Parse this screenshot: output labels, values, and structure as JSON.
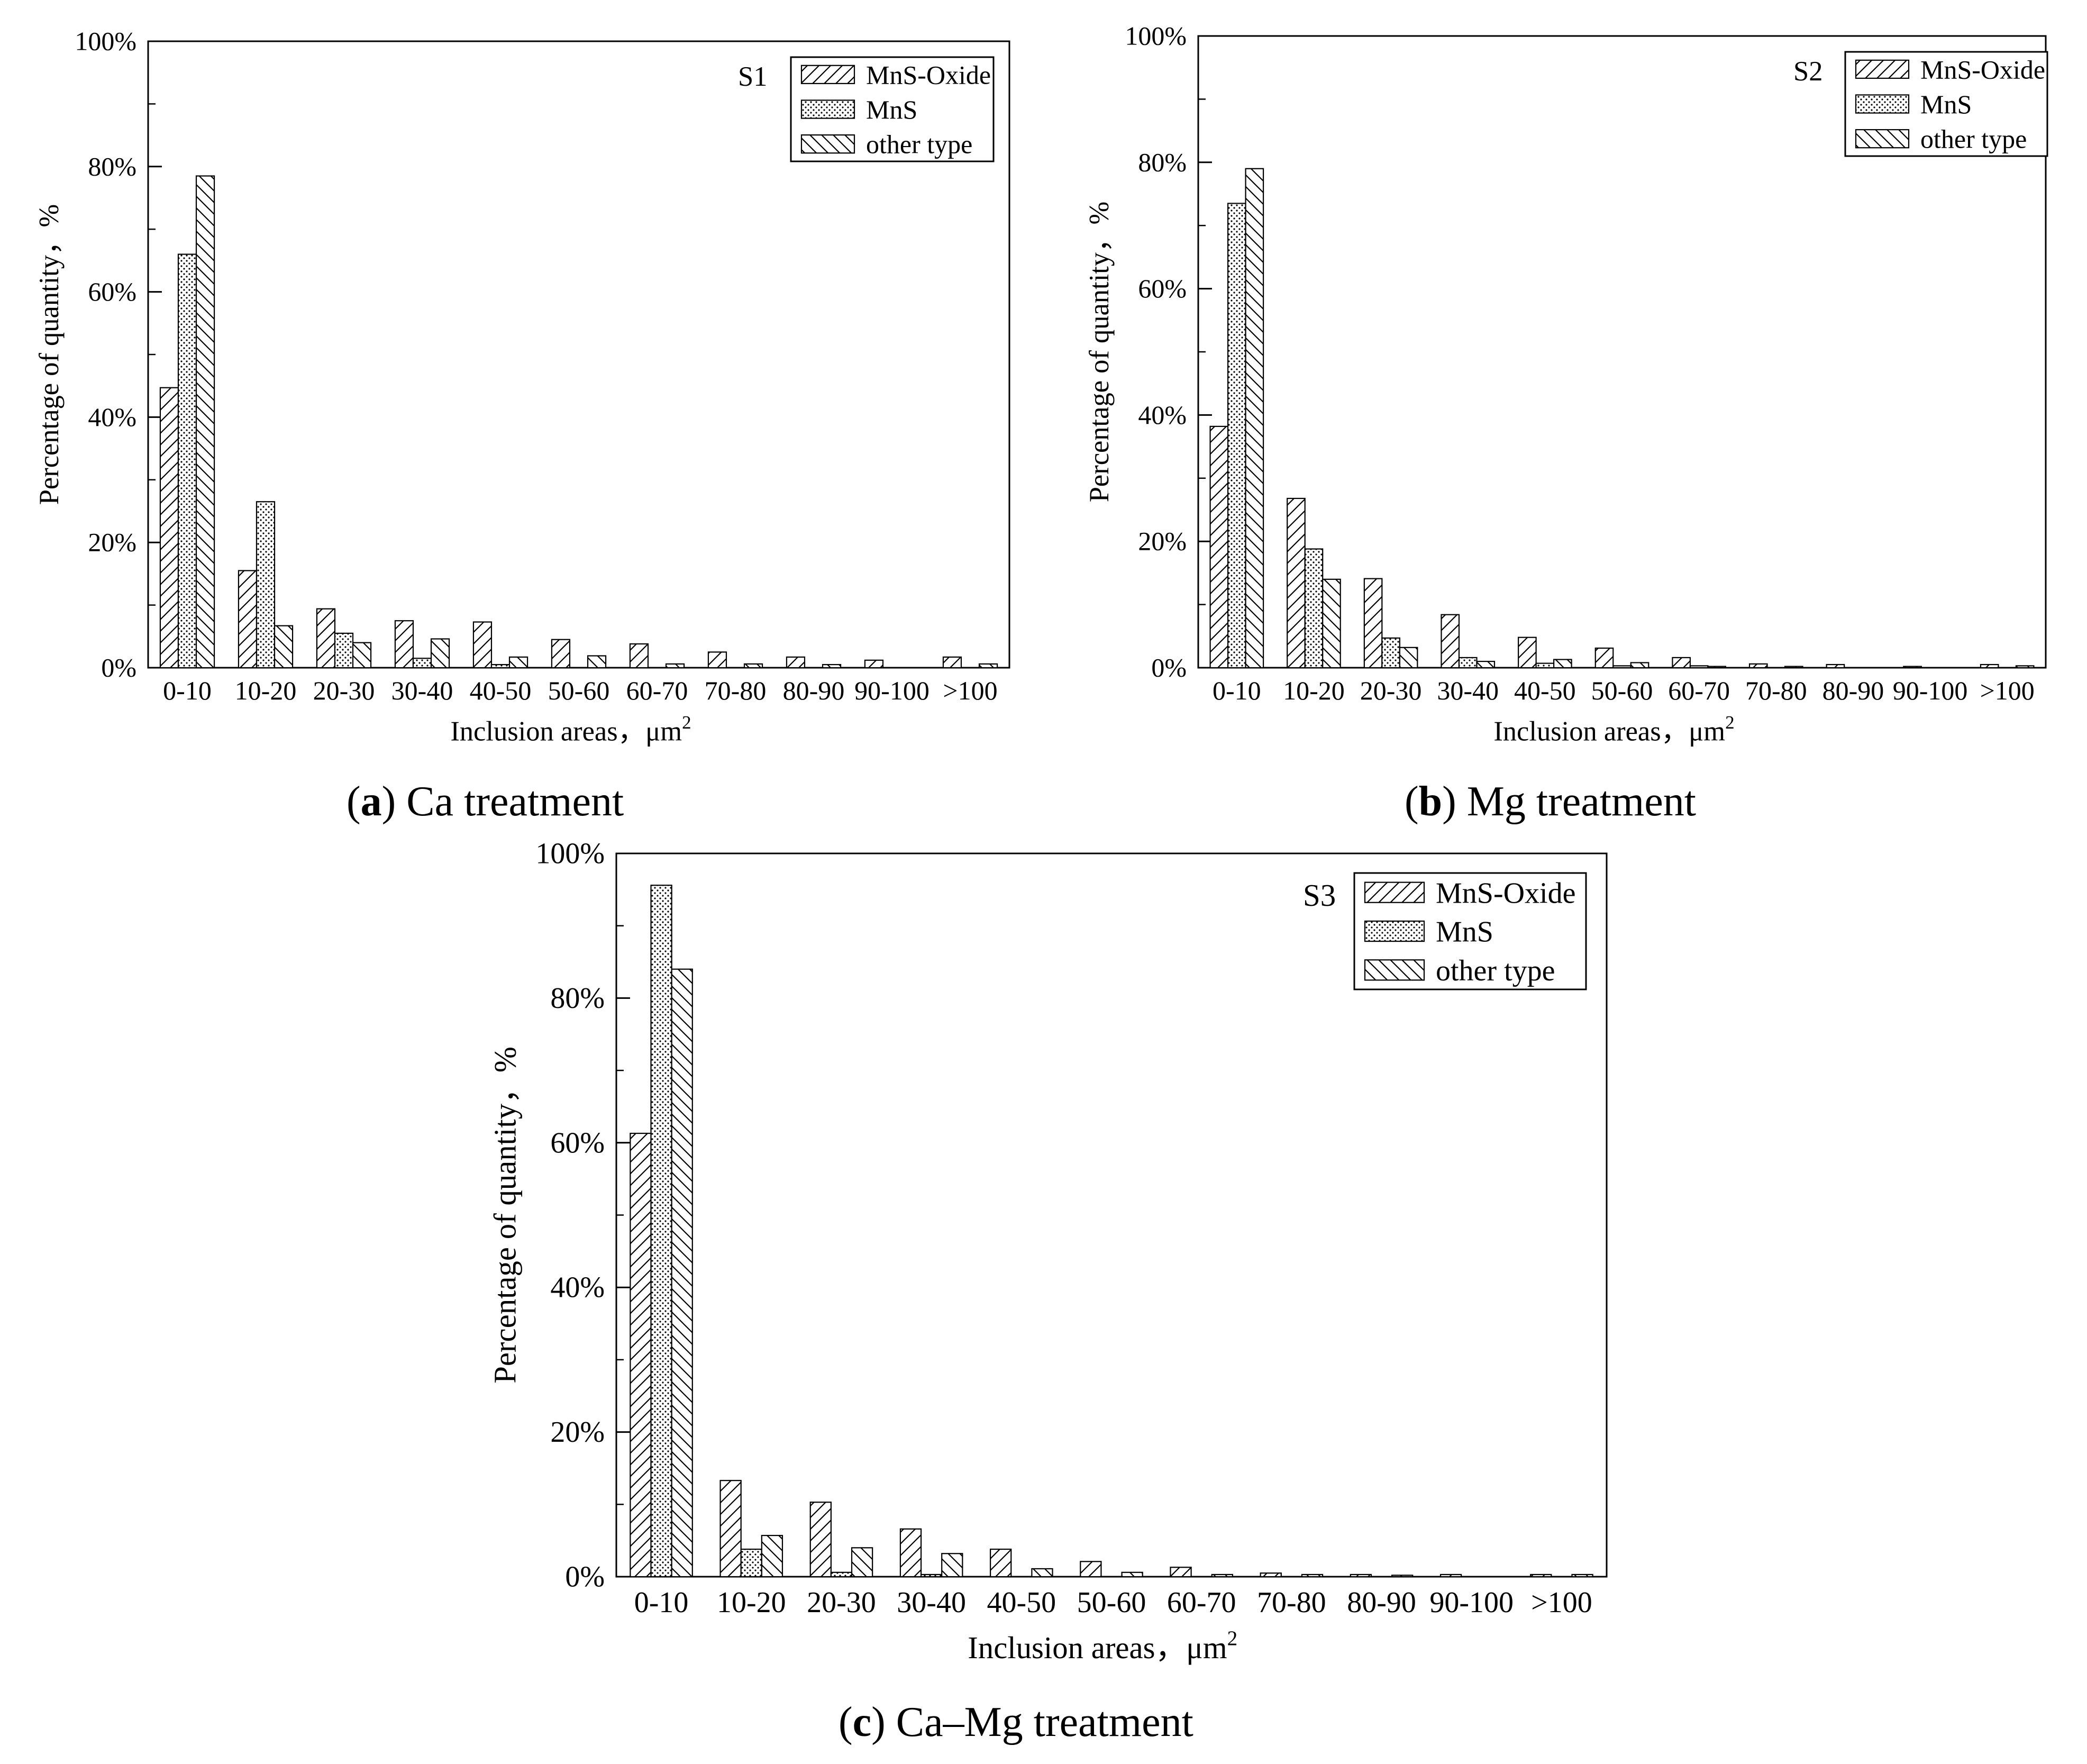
{
  "figure": {
    "colors": {
      "axis": "#000000",
      "bar_fill": "#ffffff",
      "background": "#ffffff"
    },
    "legend_series": [
      "MnS-Oxide",
      "MnS",
      "other type"
    ],
    "pattern_names": [
      "diagonal-forward-hatch",
      "dotted",
      "diagonal-backward-hatch"
    ]
  },
  "captions": [
    {
      "letter": "a",
      "paren_open": "(",
      "paren_close": ")",
      "text": " Ca treatment"
    },
    {
      "letter": "b",
      "paren_open": "(",
      "paren_close": ")",
      "text": " Mg treatment"
    },
    {
      "letter": "c",
      "paren_open": "(",
      "paren_close": ")",
      "text": " Ca–Mg treatment"
    }
  ],
  "chart_data": [
    {
      "type": "bar",
      "sample_label": "S1",
      "caption": "(a) Ca treatment",
      "xlabel": "Inclusion areas，μm",
      "xlabel_sup": "2",
      "ylabel": "Percentage of quantity，%",
      "ylim": [
        0,
        100
      ],
      "yticks": [
        "0%",
        "20%",
        "40%",
        "60%",
        "80%",
        "100%"
      ],
      "categories": [
        "0-10",
        "10-20",
        "20-30",
        "30-40",
        "40-50",
        "50-60",
        "60-70",
        "70-80",
        "80-90",
        "90-100",
        ">100"
      ],
      "series": [
        {
          "name": "MnS-Oxide",
          "values": [
            44.7,
            15.5,
            9.4,
            7.5,
            7.3,
            4.5,
            3.8,
            2.5,
            1.7,
            1.2,
            1.7
          ]
        },
        {
          "name": "MnS",
          "values": [
            66.0,
            26.5,
            5.5,
            1.5,
            0.5,
            0.0,
            0.0,
            0.0,
            0.0,
            0.0,
            0.0
          ]
        },
        {
          "name": "other type",
          "values": [
            78.5,
            6.7,
            4.0,
            4.6,
            1.7,
            1.9,
            0.6,
            0.6,
            0.5,
            0.0,
            0.6
          ]
        }
      ],
      "legend_position": "top-right"
    },
    {
      "type": "bar",
      "sample_label": "S2",
      "caption": "(b) Mg treatment",
      "xlabel": "Inclusion areas，μm",
      "xlabel_sup": "2",
      "ylabel": "Percentage of quantity，%",
      "ylim": [
        0,
        100
      ],
      "yticks": [
        "0%",
        "20%",
        "40%",
        "60%",
        "80%",
        "100%"
      ],
      "categories": [
        "0-10",
        "10-20",
        "20-30",
        "30-40",
        "40-50",
        "50-60",
        "60-70",
        "70-80",
        "80-90",
        "90-100",
        ">100"
      ],
      "series": [
        {
          "name": "MnS-Oxide",
          "values": [
            38.2,
            26.8,
            14.1,
            8.4,
            4.8,
            3.1,
            1.6,
            0.6,
            0.5,
            0.2,
            0.5
          ]
        },
        {
          "name": "MnS",
          "values": [
            73.5,
            18.8,
            4.7,
            1.6,
            0.7,
            0.3,
            0.3,
            0.0,
            0.0,
            0.0,
            0.0
          ]
        },
        {
          "name": "other type",
          "values": [
            79.0,
            14.0,
            3.2,
            1.0,
            1.3,
            0.8,
            0.2,
            0.2,
            0.0,
            0.0,
            0.3
          ]
        }
      ],
      "legend_position": "top-right"
    },
    {
      "type": "bar",
      "sample_label": "S3",
      "caption": "(c) Ca–Mg treatment",
      "xlabel": "Inclusion areas，μm",
      "xlabel_sup": "2",
      "ylabel": "Percentage of quantity，%",
      "ylim": [
        0,
        100
      ],
      "yticks": [
        "0%",
        "20%",
        "40%",
        "60%",
        "80%",
        "100%"
      ],
      "categories": [
        "0-10",
        "10-20",
        "20-30",
        "30-40",
        "40-50",
        "50-60",
        "60-70",
        "70-80",
        "80-90",
        "90-100",
        ">100"
      ],
      "series": [
        {
          "name": "MnS-Oxide",
          "values": [
            61.3,
            13.3,
            10.3,
            6.6,
            3.8,
            2.1,
            1.3,
            0.5,
            0.3,
            0.3,
            0.3
          ]
        },
        {
          "name": "MnS",
          "values": [
            95.6,
            3.8,
            0.6,
            0.3,
            0.0,
            0.0,
            0.0,
            0.0,
            0.0,
            0.0,
            0.0
          ]
        },
        {
          "name": "other type",
          "values": [
            84.0,
            5.7,
            4.0,
            3.2,
            1.1,
            0.6,
            0.3,
            0.3,
            0.2,
            0.0,
            0.3
          ]
        }
      ],
      "legend_position": "top-right"
    }
  ]
}
